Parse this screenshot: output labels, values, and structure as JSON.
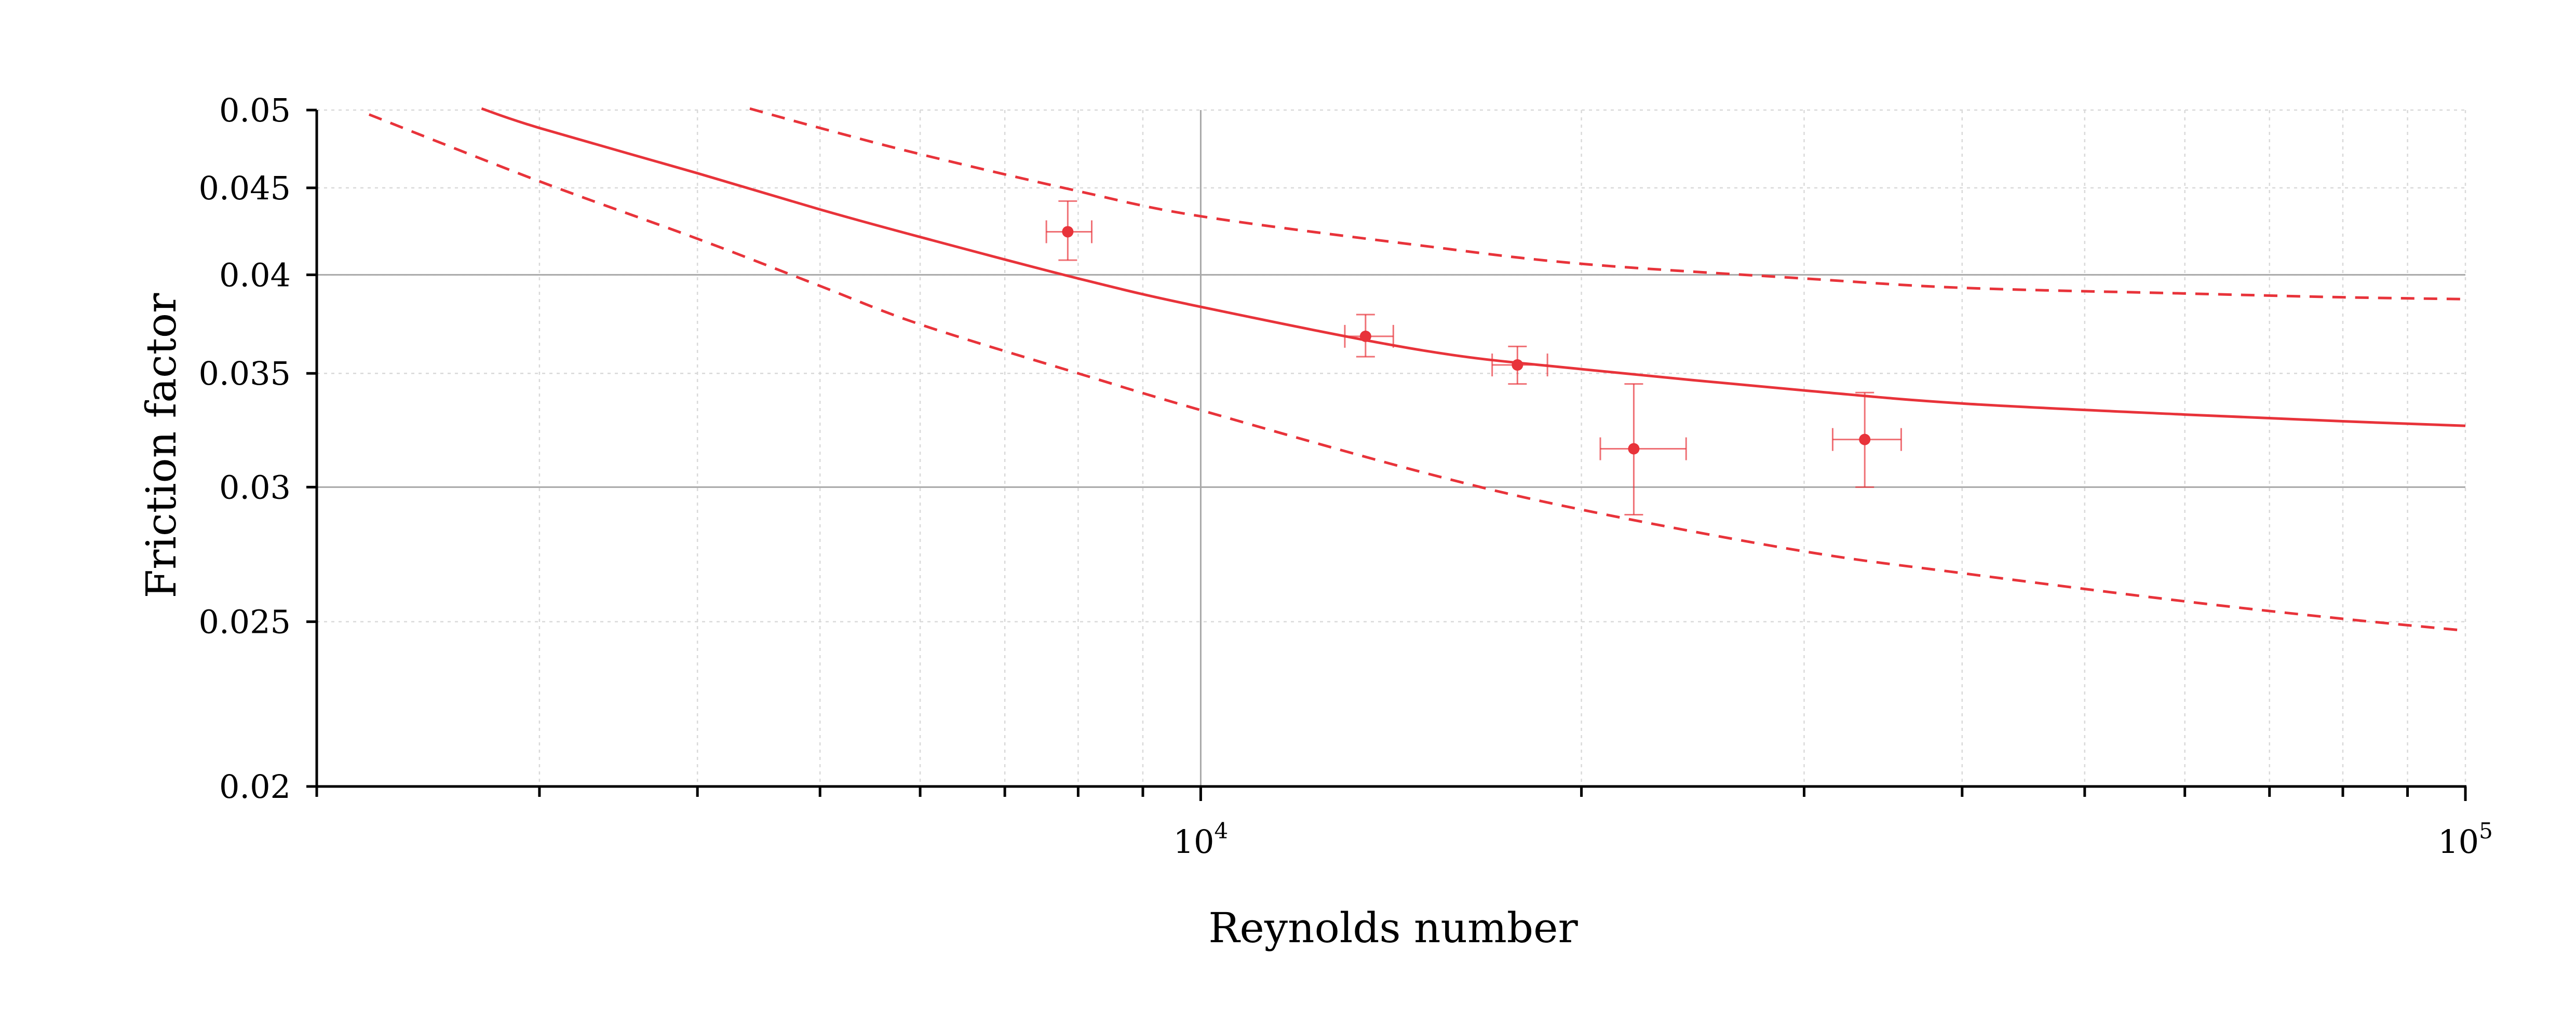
{
  "chart_data": {
    "type": "scatter",
    "xlabel": "Reynolds number",
    "ylabel": "Friction factor",
    "xscale": "log",
    "yscale": "log",
    "xlim": [
      2000,
      100000
    ],
    "ylim": [
      0.02,
      0.05
    ],
    "x_tick_labels": [
      {
        "value": 10000,
        "base": "10",
        "exp": "4"
      },
      {
        "value": 100000,
        "base": "10",
        "exp": "5"
      }
    ],
    "y_ticks": [
      0.02,
      0.025,
      0.03,
      0.035,
      0.04,
      0.045,
      0.05
    ],
    "y_tick_labels": [
      "0.02",
      "0.025",
      "0.03",
      "0.035",
      "0.04",
      "0.045",
      "0.05"
    ],
    "major_grid": {
      "x": [
        10000
      ],
      "y": [
        0.03,
        0.04
      ]
    },
    "minor_grid": true,
    "color": "#e8333a",
    "series": [
      {
        "style": "solid",
        "x": [
          2700,
          3000,
          4000,
          5000,
          6000,
          8000,
          10000,
          15000,
          20000,
          30000,
          40000,
          60000,
          80000,
          100000
        ],
        "y": [
          0.0501,
          0.0488,
          0.0459,
          0.0437,
          0.0421,
          0.0398,
          0.0383,
          0.0361,
          0.0352,
          0.0342,
          0.0336,
          0.0331,
          0.0328,
          0.0326
        ]
      },
      {
        "style": "dashed",
        "x": [
          4400,
          5000,
          6000,
          8000,
          10000,
          15000,
          20000,
          30000,
          40000,
          60000,
          80000,
          100000
        ],
        "y": [
          0.0501,
          0.0488,
          0.0471,
          0.0448,
          0.0433,
          0.0416,
          0.0406,
          0.0398,
          0.0393,
          0.039,
          0.0388,
          0.0387
        ]
      },
      {
        "style": "dashed",
        "x": [
          2200,
          3000,
          4000,
          5000,
          6000,
          8000,
          10000,
          15000,
          20000,
          30000,
          40000,
          60000,
          80000,
          100000
        ],
        "y": [
          0.0497,
          0.0454,
          0.042,
          0.0394,
          0.0374,
          0.035,
          0.0333,
          0.0306,
          0.0291,
          0.0275,
          0.0267,
          0.0257,
          0.0251,
          0.0247
        ]
      }
    ],
    "points": [
      {
        "x": 7850,
        "y": 0.0424,
        "xerr": [
          7550,
          8200
        ],
        "yerr": [
          0.0408,
          0.0442
        ]
      },
      {
        "x": 13500,
        "y": 0.0368,
        "xerr": [
          13000,
          14200
        ],
        "yerr": [
          0.0358,
          0.0379
        ]
      },
      {
        "x": 17800,
        "y": 0.0354,
        "xerr": [
          17000,
          18800
        ],
        "yerr": [
          0.0345,
          0.0363
        ]
      },
      {
        "x": 22000,
        "y": 0.0316,
        "xerr": [
          20700,
          24200
        ],
        "yerr": [
          0.0289,
          0.0345
        ]
      },
      {
        "x": 33500,
        "y": 0.032,
        "xerr": [
          31600,
          35800
        ],
        "yerr": [
          0.03,
          0.0341
        ]
      }
    ]
  }
}
